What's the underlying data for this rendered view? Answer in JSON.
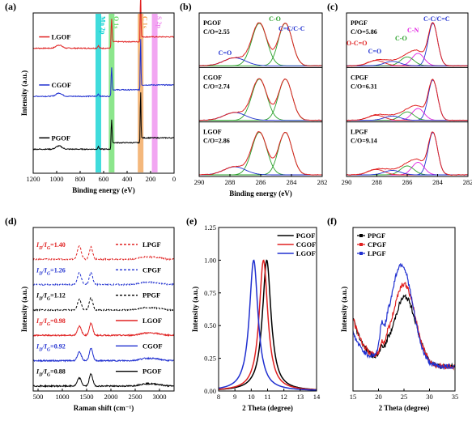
{
  "figure": {
    "panels": [
      {
        "letter": "(a)",
        "type": "line",
        "xlabel": "Binding energy (eV)",
        "ylabel": "Intensity (a.u.)",
        "xlim": [
          1200,
          0
        ],
        "xticks": [
          "1200",
          "1000",
          "800",
          "600",
          "400",
          "200",
          "0"
        ],
        "bands": [
          {
            "label": "Mn 2p",
            "center": 645,
            "color": "#00d0d0"
          },
          {
            "label": "O 1s",
            "center": 532,
            "color": "#66dd66"
          },
          {
            "label": "C 1s",
            "center": 285,
            "color": "#f0a050"
          },
          {
            "label": "S 2p",
            "center": 165,
            "color": "#ee88ee"
          }
        ],
        "series": [
          {
            "name": "LGOF",
            "color": "#e02020",
            "baseline": 0.78
          },
          {
            "name": "CGOF",
            "color": "#2030d0",
            "baseline": 0.48
          },
          {
            "name": "PGOF",
            "color": "#000000",
            "baseline": 0.15
          }
        ]
      },
      {
        "letter": "(b)",
        "type": "line",
        "xlabel": "Binding energy (eV)",
        "xlim": [
          291,
          282
        ],
        "xticks": [
          "290",
          "288",
          "286",
          "284",
          "282"
        ],
        "subpanels": [
          {
            "name": "PGOF",
            "ratio": "C/O=2.55",
            "labels": [
              "C-O",
              "C=C/C-C",
              "C=O"
            ]
          },
          {
            "name": "CGOF",
            "ratio": "C/O=2.74"
          },
          {
            "name": "LGOF",
            "ratio": "C/O=2.86"
          }
        ]
      },
      {
        "letter": "(c)",
        "type": "line",
        "xlim": [
          291,
          282
        ],
        "xticks": [
          "290",
          "288",
          "286",
          "284",
          "282"
        ],
        "subpanels": [
          {
            "name": "PPGF",
            "ratio": "C/O=5.86",
            "labels": [
              "C-C/C=C",
              "C-N",
              "C-O",
              "O-C=O",
              "C=O"
            ]
          },
          {
            "name": "CPGF",
            "ratio": "C/O=6.31"
          },
          {
            "name": "LPGF",
            "ratio": "C/O=9.14"
          }
        ]
      },
      {
        "letter": "(d)",
        "type": "line",
        "xlabel": "Raman shift (cm⁻¹)",
        "ylabel": "Intensity (a.u.)",
        "xlim": [
          400,
          3300
        ],
        "xticks": [
          "500",
          "1000",
          "1500",
          "2000",
          "2500",
          "3000"
        ],
        "series": [
          {
            "name": "LPGF",
            "ratio": "1.40",
            "color": "#e02020",
            "dashed": true
          },
          {
            "name": "CPGF",
            "ratio": "1.26",
            "color": "#2030d0",
            "dashed": true
          },
          {
            "name": "PPGF",
            "ratio": "1.12",
            "color": "#000000",
            "dashed": true
          },
          {
            "name": "LGOF",
            "ratio": "0.98",
            "color": "#e02020",
            "dashed": false
          },
          {
            "name": "CGOF",
            "ratio": "0.92",
            "color": "#2030d0",
            "dashed": false
          },
          {
            "name": "PGOF",
            "ratio": "0.88",
            "color": "#000000",
            "dashed": false
          }
        ]
      },
      {
        "letter": "(e)",
        "type": "line",
        "xlabel": "2 Theta (degree)",
        "ylabel": "Intensity (a.u.)",
        "xlim": [
          8,
          14
        ],
        "ylim": [
          0,
          1.25
        ],
        "xticks": [
          "8",
          "9",
          "10",
          "11",
          "12",
          "13",
          "14"
        ],
        "yticks": [
          "0.00",
          "0.25",
          "0.50",
          "0.75",
          "1.00",
          "1.25"
        ],
        "series": [
          {
            "name": "PGOF",
            "color": "#000000",
            "peak": 10.95
          },
          {
            "name": "CGOF",
            "color": "#e02020",
            "peak": 10.75
          },
          {
            "name": "LGOF",
            "color": "#2030d0",
            "peak": 10.15
          }
        ]
      },
      {
        "letter": "(f)",
        "type": "line",
        "xlabel": "2 Theta (degree)",
        "ylabel": "Intensity (a.u.)",
        "xlim": [
          15,
          35
        ],
        "xticks": [
          "15",
          "20",
          "25",
          "30",
          "35"
        ],
        "series": [
          {
            "name": "PPGF",
            "color": "#000000",
            "peak": 25.2
          },
          {
            "name": "CPGF",
            "color": "#e02020",
            "peak": 25.0
          },
          {
            "name": "LPGF",
            "color": "#2030d0",
            "peak": 24.5
          }
        ]
      }
    ]
  },
  "chart_data": [
    {
      "type": "line",
      "panel": "(a)",
      "xlabel": "Binding energy (eV)",
      "ylabel": "Intensity (a.u.)",
      "xlim": [
        1200,
        0
      ],
      "series": [
        {
          "name": "LGOF"
        },
        {
          "name": "CGOF"
        },
        {
          "name": "PGOF"
        }
      ]
    },
    {
      "type": "line",
      "panel": "(b)",
      "xlabel": "Binding energy (eV)",
      "xlim": [
        291,
        282
      ],
      "series": [
        {
          "name": "PGOF"
        },
        {
          "name": "CGOF"
        },
        {
          "name": "LGOF"
        }
      ]
    },
    {
      "type": "line",
      "panel": "(c)",
      "xlim": [
        291,
        282
      ],
      "series": [
        {
          "name": "PPGF"
        },
        {
          "name": "CPGF"
        },
        {
          "name": "LPGF"
        }
      ]
    },
    {
      "type": "line",
      "panel": "(d)",
      "xlabel": "Raman shift (cm⁻¹)",
      "ylabel": "Intensity (a.u.)",
      "xlim": [
        400,
        3300
      ],
      "series": [
        {
          "name": "LPGF",
          "ID/IG": 1.4
        },
        {
          "name": "CPGF",
          "ID/IG": 1.26
        },
        {
          "name": "PPGF",
          "ID/IG": 1.12
        },
        {
          "name": "LGOF",
          "ID/IG": 0.98
        },
        {
          "name": "CGOF",
          "ID/IG": 0.92
        },
        {
          "name": "PGOF",
          "ID/IG": 0.88
        }
      ]
    },
    {
      "type": "line",
      "panel": "(e)",
      "xlabel": "2 Theta (degree)",
      "ylabel": "Intensity (a.u.)",
      "xlim": [
        8,
        14
      ],
      "ylim": [
        0,
        1.25
      ],
      "series": [
        {
          "name": "PGOF",
          "peak_x": 10.95,
          "peak_y": 1.0
        },
        {
          "name": "CGOF",
          "peak_x": 10.75,
          "peak_y": 1.0
        },
        {
          "name": "LGOF",
          "peak_x": 10.15,
          "peak_y": 1.0
        }
      ]
    },
    {
      "type": "line",
      "panel": "(f)",
      "xlabel": "2 Theta (degree)",
      "ylabel": "Intensity (a.u.)",
      "xlim": [
        15,
        35
      ],
      "series": [
        {
          "name": "PPGF",
          "peak_x": 25.2
        },
        {
          "name": "CPGF",
          "peak_x": 25.0
        },
        {
          "name": "LPGF",
          "peak_x": 24.5
        }
      ]
    }
  ]
}
